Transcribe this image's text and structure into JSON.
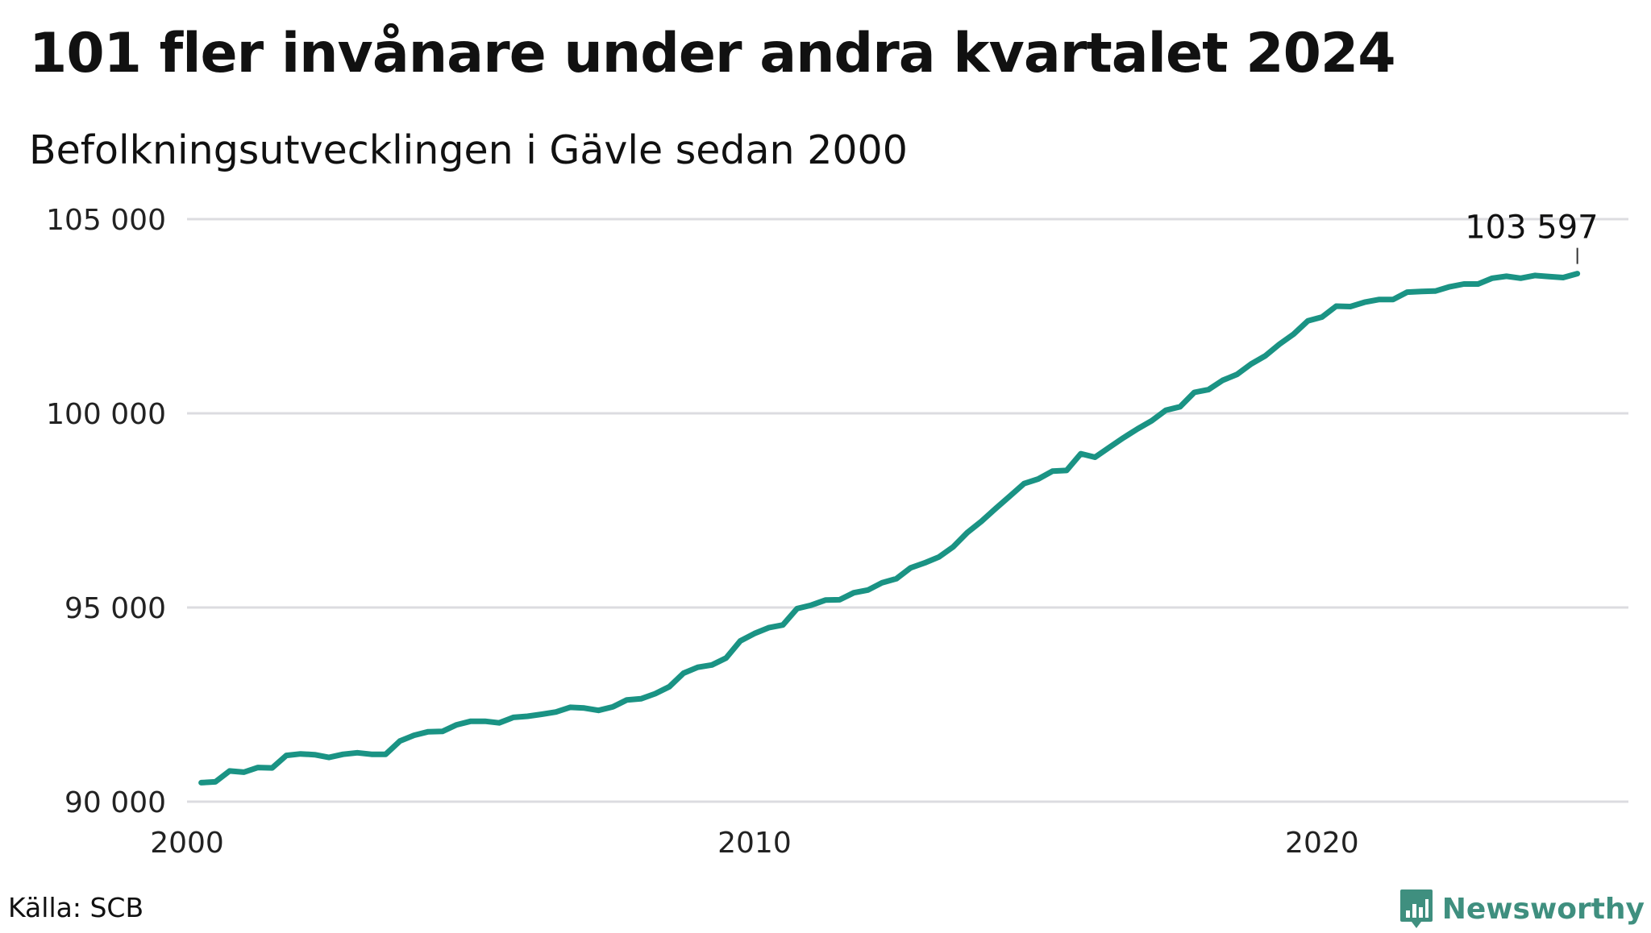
{
  "header": {
    "title": "101 fler invånare under andra kvartalet 2024",
    "subtitle": "Befolkningsutvecklingen i Gävle sedan 2000"
  },
  "footer": {
    "source": "Källa: SCB",
    "brand": "Newsworthy",
    "brand_icon": "newsworthy-logo-icon"
  },
  "colors": {
    "line": "#1a9384",
    "grid": "#dcdce0",
    "brand": "#3f8f7f"
  },
  "chart_data": {
    "type": "line",
    "title": "101 fler invånare under andra kvartalet 2024",
    "subtitle": "Befolkningsutvecklingen i Gävle sedan 2000",
    "xlabel": "",
    "ylabel": "",
    "xlim": [
      2000,
      2025.4
    ],
    "ylim": [
      90000,
      105000
    ],
    "grid": true,
    "x_ticks": [
      {
        "value": 2000,
        "label": "2000"
      },
      {
        "value": 2010,
        "label": "2010"
      },
      {
        "value": 2020,
        "label": "2020"
      }
    ],
    "y_ticks": [
      {
        "value": 90000,
        "label": "90 000"
      },
      {
        "value": 95000,
        "label": "95 000"
      },
      {
        "value": 100000,
        "label": "100 000"
      },
      {
        "value": 105000,
        "label": "105 000"
      }
    ],
    "end_label": "103 597",
    "series": [
      {
        "x": [
          2000.25,
          2000.5,
          2000.75,
          2001.0,
          2001.25,
          2001.5,
          2001.75,
          2002.0,
          2002.25,
          2002.5,
          2002.75,
          2003.0,
          2003.25,
          2003.5,
          2003.75,
          2004.0,
          2004.25,
          2004.5,
          2004.75,
          2005.0,
          2005.25,
          2005.5,
          2005.75,
          2006.0,
          2006.25,
          2006.5,
          2006.75,
          2007.0,
          2007.25,
          2007.5,
          2007.75,
          2008.0,
          2008.25,
          2008.5,
          2008.75,
          2009.0,
          2009.25,
          2009.5,
          2009.75,
          2010.0,
          2010.25,
          2010.5,
          2010.75,
          2011.0,
          2011.25,
          2011.5,
          2011.75,
          2012.0,
          2012.25,
          2012.5,
          2012.75,
          2013.0,
          2013.25,
          2013.5,
          2013.75,
          2014.0,
          2014.25,
          2014.5,
          2014.75,
          2015.0,
          2015.25,
          2015.5,
          2015.75,
          2016.0,
          2016.25,
          2016.5,
          2016.75,
          2017.0,
          2017.25,
          2017.5,
          2017.75,
          2018.0,
          2018.25,
          2018.5,
          2018.75,
          2019.0,
          2019.25,
          2019.5,
          2019.75,
          2020.0,
          2020.25,
          2020.5,
          2020.75,
          2021.0,
          2021.25,
          2021.5,
          2021.75,
          2022.0,
          2022.25,
          2022.5,
          2022.75,
          2023.0,
          2023.25,
          2023.5,
          2023.75,
          2024.0,
          2024.25,
          2024.5
        ],
        "values": [
          90490,
          90510,
          90790,
          90760,
          90880,
          90870,
          91190,
          91230,
          91210,
          91140,
          91220,
          91260,
          91220,
          91220,
          91560,
          91710,
          91800,
          91810,
          91980,
          92070,
          92070,
          92030,
          92170,
          92200,
          92250,
          92310,
          92430,
          92410,
          92350,
          92440,
          92620,
          92650,
          92780,
          92960,
          93310,
          93460,
          93520,
          93700,
          94140,
          94330,
          94480,
          94550,
          94970,
          95060,
          95190,
          95200,
          95380,
          95450,
          95640,
          95740,
          96020,
          96150,
          96300,
          96560,
          96930,
          97220,
          97550,
          97870,
          98190,
          98310,
          98510,
          98530,
          98960,
          98870,
          99120,
          99370,
          99600,
          99810,
          100080,
          100170,
          100540,
          100610,
          100850,
          101000,
          101270,
          101480,
          101780,
          102040,
          102380,
          102480,
          102760,
          102750,
          102860,
          102930,
          102930,
          103120,
          103140,
          103150,
          103260,
          103330,
          103330,
          103480,
          103530,
          103480,
          103550,
          103520,
          103496,
          103597
        ]
      }
    ]
  }
}
